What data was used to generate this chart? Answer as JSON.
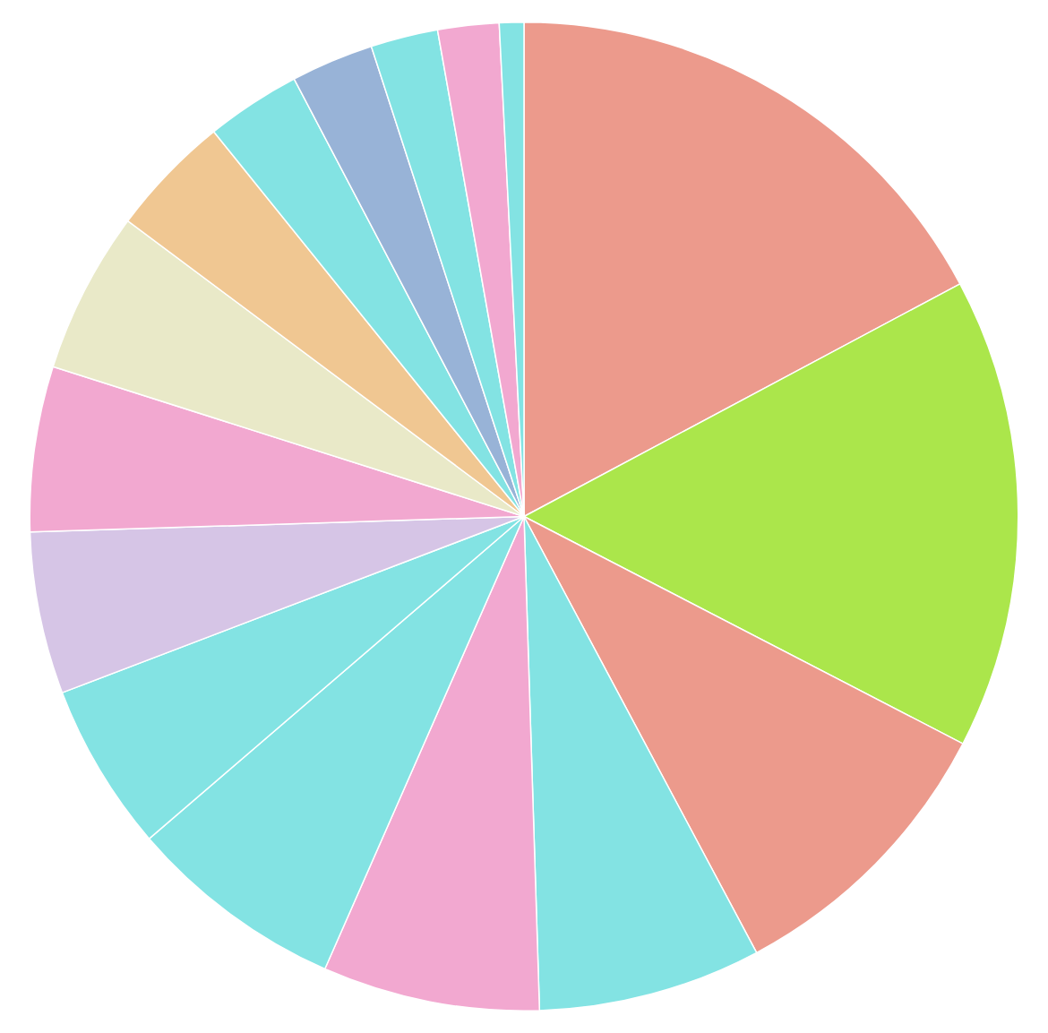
{
  "chart_data": {
    "type": "pie",
    "categories": [
      null,
      null,
      null,
      null,
      null,
      null,
      null,
      null,
      null,
      null,
      null,
      null,
      null,
      null,
      null,
      null
    ],
    "values": [
      17.2,
      15.4,
      9.6,
      7.3,
      7.1,
      7.1,
      5.5,
      5.3,
      5.4,
      5.3,
      4.0,
      3.1,
      2.7,
      2.2,
      2.0,
      0.8
    ],
    "colors": [
      "#ec9a8c",
      "#abe64b",
      "#ec9a8c",
      "#83e3e3",
      "#f2a8d0",
      "#83e3e3",
      "#83e3e3",
      "#d6c5e6",
      "#f2a8d0",
      "#e9e9c8",
      "#f0c792",
      "#83e3e3",
      "#98b3d7",
      "#83e3e3",
      "#f2a8d0",
      "#83e3e3"
    ],
    "legend": false
  }
}
